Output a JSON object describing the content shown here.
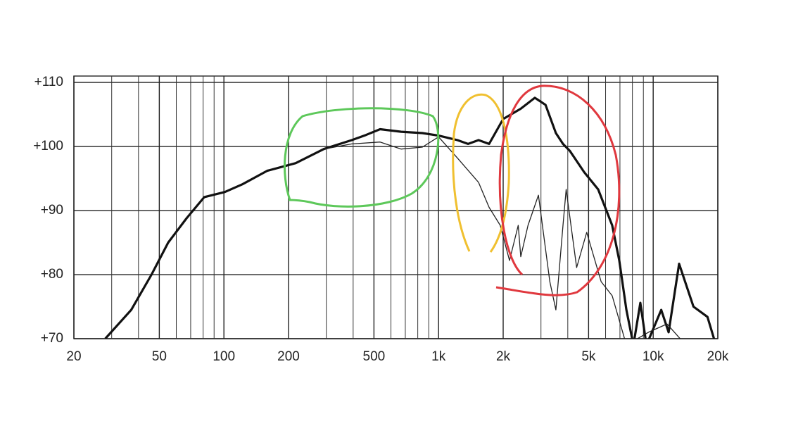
{
  "chart_data": {
    "type": "line",
    "log_x": true,
    "grid": true,
    "xlim": [
      20,
      20000
    ],
    "ylim": [
      70,
      111
    ],
    "xticks": [
      20,
      50,
      100,
      200,
      500,
      {
        "value": 1000,
        "label": "1k"
      },
      {
        "value": 2000,
        "label": "2k"
      },
      {
        "value": 5000,
        "label": "5k"
      },
      {
        "value": 10000,
        "label": "10k"
      },
      {
        "value": 20000,
        "label": "20k"
      }
    ],
    "x_minor_grid": [
      30,
      40,
      60,
      70,
      80,
      90,
      300,
      400,
      600,
      700,
      800,
      900,
      3000,
      4000,
      6000,
      7000,
      8000,
      9000
    ],
    "yticks": [
      {
        "value": 70,
        "label": "+70"
      },
      {
        "value": 80,
        "label": "+80"
      },
      {
        "value": 90,
        "label": "+90"
      },
      {
        "value": 100,
        "label": "+100"
      },
      {
        "value": 110,
        "label": "+110"
      }
    ],
    "series": [
      {
        "color": "#111111",
        "width": 3.2,
        "x": [
          28,
          37,
          46,
          55,
          67,
          81,
          101,
          122,
          159,
          216,
          292,
          394,
          459,
          534,
          670,
          840,
          1000,
          1224,
          1372,
          1536,
          1720,
          2000,
          2416,
          2810,
          3150,
          3520,
          3800,
          4090,
          4770,
          5540,
          6440,
          6950,
          7500,
          8090,
          8710,
          9300,
          10900,
          11800,
          13200,
          15400,
          17900,
          19600
        ],
        "values": [
          70,
          74.5,
          80,
          85,
          88.8,
          92.1,
          92.9,
          94.1,
          96.2,
          97.4,
          99.6,
          101,
          101.8,
          102.7,
          102.3,
          102.1,
          101.7,
          101,
          100.4,
          101,
          100.4,
          104.3,
          105.9,
          107.6,
          106.5,
          102.1,
          100.4,
          99.3,
          96,
          93.3,
          87.7,
          82.2,
          74.5,
          69,
          75.6,
          69,
          74.5,
          71,
          81.7,
          75,
          73.4,
          69
        ]
      },
      {
        "color": "#222222",
        "width": 1.3,
        "x": [
          292,
          394,
          534,
          670,
          840,
          1000,
          1224,
          1536,
          1720,
          1937,
          2140,
          2350,
          2416,
          2610,
          2920,
          3300,
          3520,
          3800,
          3930,
          4400,
          4900,
          5720,
          6440,
          7500,
          9500,
          11600,
          14200
        ],
        "values": [
          99.6,
          100.4,
          100.7,
          99.6,
          99.9,
          101.5,
          98.2,
          94.4,
          90.5,
          87.7,
          82.2,
          87.7,
          82.8,
          87.7,
          92.4,
          78.9,
          74.5,
          87.7,
          93.3,
          81.1,
          86.6,
          78.9,
          76.7,
          69,
          71,
          72.3,
          69
        ]
      }
    ]
  }
}
